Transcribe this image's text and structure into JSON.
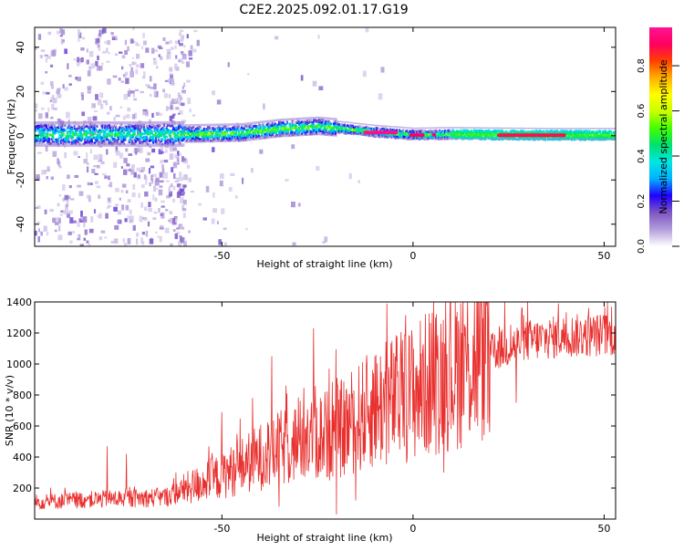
{
  "title": "C2E2.2025.092.01.17.G19",
  "chart_data": [
    {
      "type": "heatmap",
      "xlabel": "Height of straight line (km)",
      "ylabel": "Frequency (Hz)",
      "xlim": [
        -99,
        53
      ],
      "ylim": [
        -50,
        49
      ],
      "xticks": [
        "-50",
        "0",
        "50"
      ],
      "yticks": [
        "-40",
        "-20",
        "0",
        "20",
        "40"
      ],
      "colorbar": {
        "label": "Normalized spectral amplitude",
        "range": [
          0,
          0.97
        ],
        "ticks": [
          "0.0",
          "0.2",
          "0.4",
          "0.6",
          "0.8"
        ],
        "colors": [
          "#ffffff",
          "#b39ddb",
          "#7e57c2",
          "#2000ff",
          "#00b0ff",
          "#00e5e5",
          "#00e070",
          "#40ff00",
          "#c8ff00",
          "#ffff00",
          "#ffb000",
          "#ff4000",
          "#ff0060",
          "#ff1493"
        ]
      },
      "ridge": [
        {
          "x": -99,
          "freq": 0.5
        },
        {
          "x": -60,
          "freq": 0.5
        },
        {
          "x": -45,
          "freq": 1.0
        },
        {
          "x": -35,
          "freq": 3.0
        },
        {
          "x": -25,
          "freq": 4.0
        },
        {
          "x": -18,
          "freq": 3.0
        },
        {
          "x": -10,
          "freq": 1.5
        },
        {
          "x": 0,
          "freq": 0.2
        },
        {
          "x": 10,
          "freq": 0.5
        },
        {
          "x": 20,
          "freq": 0.3
        },
        {
          "x": 35,
          "freq": 0.1
        },
        {
          "x": 53,
          "freq": 0.1
        }
      ],
      "peak_segments": [
        {
          "x0": -13,
          "x1": -4,
          "freq": 1.5,
          "amp": 0.95
        },
        {
          "x0": -1,
          "x1": 3,
          "freq": 0.3,
          "amp": 0.9
        },
        {
          "x0": 5,
          "x1": 6,
          "freq": 0.4,
          "amp": 0.9
        },
        {
          "x0": 22,
          "x1": 40,
          "freq": 0.2,
          "amp": 0.88
        }
      ]
    },
    {
      "type": "line",
      "xlabel": "Height of straight line (km)",
      "ylabel": "SNR (10 * v/v)",
      "xlim": [
        -99,
        53
      ],
      "ylim": [
        0,
        1400
      ],
      "xticks": [
        "-50",
        "0",
        "50"
      ],
      "yticks": [
        "200",
        "400",
        "600",
        "800",
        "1000",
        "1200",
        "1400"
      ],
      "series": [
        {
          "color": "#e8302e",
          "trend": [
            {
              "x": -99,
              "y": 110
            },
            {
              "x": -80,
              "y": 130
            },
            {
              "x": -65,
              "y": 140
            },
            {
              "x": -60,
              "y": 190
            },
            {
              "x": -50,
              "y": 280
            },
            {
              "x": -40,
              "y": 400
            },
            {
              "x": -30,
              "y": 500
            },
            {
              "x": -20,
              "y": 560
            },
            {
              "x": -10,
              "y": 720
            },
            {
              "x": 0,
              "y": 820
            },
            {
              "x": 10,
              "y": 960
            },
            {
              "x": 20,
              "y": 1070
            },
            {
              "x": 30,
              "y": 1150
            },
            {
              "x": 40,
              "y": 1180
            },
            {
              "x": 53,
              "y": 1190
            }
          ],
          "spikes": [
            {
              "x": -80,
              "y": 470
            },
            {
              "x": -75,
              "y": 420
            },
            {
              "x": -62,
              "y": 300
            },
            {
              "x": -50,
              "y": 690
            },
            {
              "x": -42,
              "y": 780
            },
            {
              "x": -37,
              "y": 1050
            },
            {
              "x": -33,
              "y": 810
            },
            {
              "x": -29,
              "y": 650
            },
            {
              "x": -26,
              "y": 1230
            },
            {
              "x": -22,
              "y": 970
            },
            {
              "x": -16,
              "y": 780
            },
            {
              "x": -12,
              "y": 960
            },
            {
              "x": -10,
              "y": 1050
            },
            {
              "x": -5,
              "y": 1070
            },
            {
              "x": -2,
              "y": 1180
            },
            {
              "x": 5,
              "y": 1330
            },
            {
              "x": 8,
              "y": 300
            },
            {
              "x": 12,
              "y": 1220
            },
            {
              "x": 18,
              "y": 1330
            },
            {
              "x": 24,
              "y": 1400
            },
            {
              "x": 30,
              "y": 1400
            },
            {
              "x": 38,
              "y": 1390
            },
            {
              "x": 46,
              "y": 1360
            },
            {
              "x": 52,
              "y": 1370
            }
          ],
          "dips": [
            {
              "x": -20,
              "y": 30
            },
            {
              "x": -35,
              "y": 80
            },
            {
              "x": -15,
              "y": 120
            },
            {
              "x": 8,
              "y": 300
            },
            {
              "x": 20,
              "y": 560
            },
            {
              "x": 27,
              "y": 750
            }
          ]
        }
      ]
    }
  ]
}
